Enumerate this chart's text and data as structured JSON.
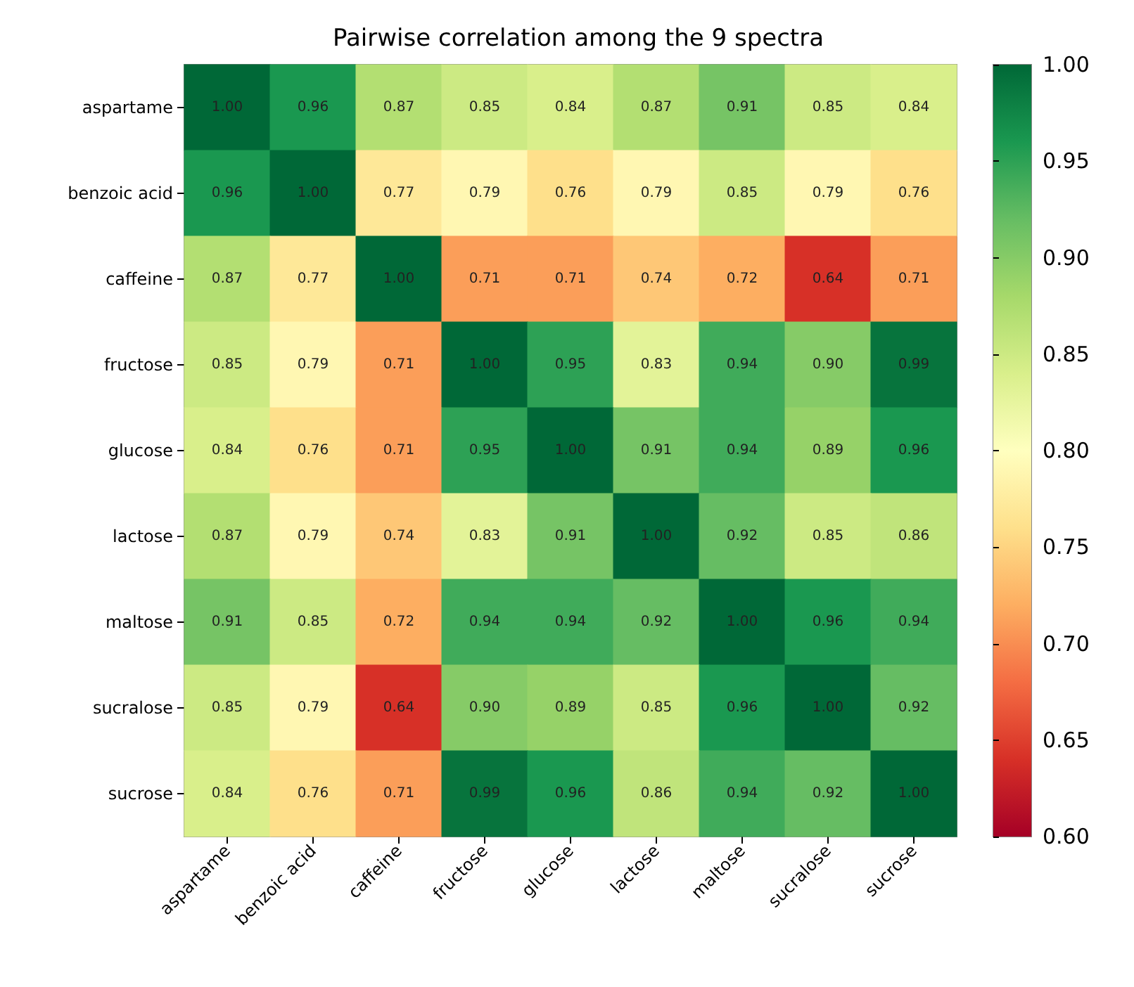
{
  "chart_data": {
    "type": "heatmap",
    "title": "Pairwise correlation among the 9 spectra",
    "categories": [
      "aspartame",
      "benzoic acid",
      "caffeine",
      "fructose",
      "glucose",
      "lactose",
      "maltose",
      "sucralose",
      "sucrose"
    ],
    "y_categories": [
      "aspartame",
      "benzoic acid",
      "caffeine",
      "fructose",
      "glucose",
      "lactose",
      "maltose",
      "sucralose",
      "sucrose"
    ],
    "cells": [
      [
        1.0,
        0.96,
        0.87,
        0.85,
        0.84,
        0.87,
        0.91,
        0.85,
        0.84
      ],
      [
        0.96,
        1.0,
        0.77,
        0.79,
        0.76,
        0.79,
        0.85,
        0.79,
        0.76
      ],
      [
        0.87,
        0.77,
        1.0,
        0.71,
        0.71,
        0.74,
        0.72,
        0.64,
        0.71
      ],
      [
        0.85,
        0.79,
        0.71,
        1.0,
        0.95,
        0.83,
        0.94,
        0.9,
        0.99
      ],
      [
        0.84,
        0.76,
        0.71,
        0.95,
        1.0,
        0.91,
        0.94,
        0.89,
        0.96
      ],
      [
        0.87,
        0.79,
        0.74,
        0.83,
        0.91,
        1.0,
        0.92,
        0.85,
        0.86
      ],
      [
        0.91,
        0.85,
        0.72,
        0.94,
        0.94,
        0.92,
        1.0,
        0.96,
        0.94
      ],
      [
        0.85,
        0.79,
        0.64,
        0.9,
        0.89,
        0.85,
        0.96,
        1.0,
        0.92
      ],
      [
        0.84,
        0.76,
        0.71,
        0.99,
        0.96,
        0.86,
        0.94,
        0.92,
        1.0
      ]
    ],
    "cell_labels": [
      [
        "1.00",
        "0.96",
        "0.87",
        "0.85",
        "0.84",
        "0.87",
        "0.91",
        "0.85",
        "0.84"
      ],
      [
        "0.96",
        "1.00",
        "0.77",
        "0.79",
        "0.76",
        "0.79",
        "0.85",
        "0.79",
        "0.76"
      ],
      [
        "0.87",
        "0.77",
        "1.00",
        "0.71",
        "0.71",
        "0.74",
        "0.72",
        "0.64",
        "0.71"
      ],
      [
        "0.85",
        "0.79",
        "0.71",
        "1.00",
        "0.95",
        "0.83",
        "0.94",
        "0.90",
        "0.99"
      ],
      [
        "0.84",
        "0.76",
        "0.71",
        "0.95",
        "1.00",
        "0.91",
        "0.94",
        "0.89",
        "0.96"
      ],
      [
        "0.87",
        "0.79",
        "0.74",
        "0.83",
        "0.91",
        "1.00",
        "0.92",
        "0.85",
        "0.86"
      ],
      [
        "0.91",
        "0.85",
        "0.72",
        "0.94",
        "0.94",
        "0.92",
        "1.00",
        "0.96",
        "0.94"
      ],
      [
        "0.85",
        "0.79",
        "0.64",
        "0.90",
        "0.89",
        "0.85",
        "0.96",
        "1.00",
        "0.92"
      ],
      [
        "0.84",
        "0.76",
        "0.71",
        "0.99",
        "0.96",
        "0.86",
        "0.94",
        "0.92",
        "1.00"
      ]
    ],
    "clim": [
      0.6,
      1.0
    ],
    "cticks": [
      {
        "value": 0.6,
        "label": "0.60"
      },
      {
        "value": 0.65,
        "label": "0.65"
      },
      {
        "value": 0.7,
        "label": "0.70"
      },
      {
        "value": 0.75,
        "label": "0.75"
      },
      {
        "value": 0.8,
        "label": "0.80"
      },
      {
        "value": 0.85,
        "label": "0.85"
      },
      {
        "value": 0.9,
        "label": "0.90"
      },
      {
        "value": 0.95,
        "label": "0.95"
      },
      {
        "value": 1.0,
        "label": "1.00"
      }
    ]
  }
}
